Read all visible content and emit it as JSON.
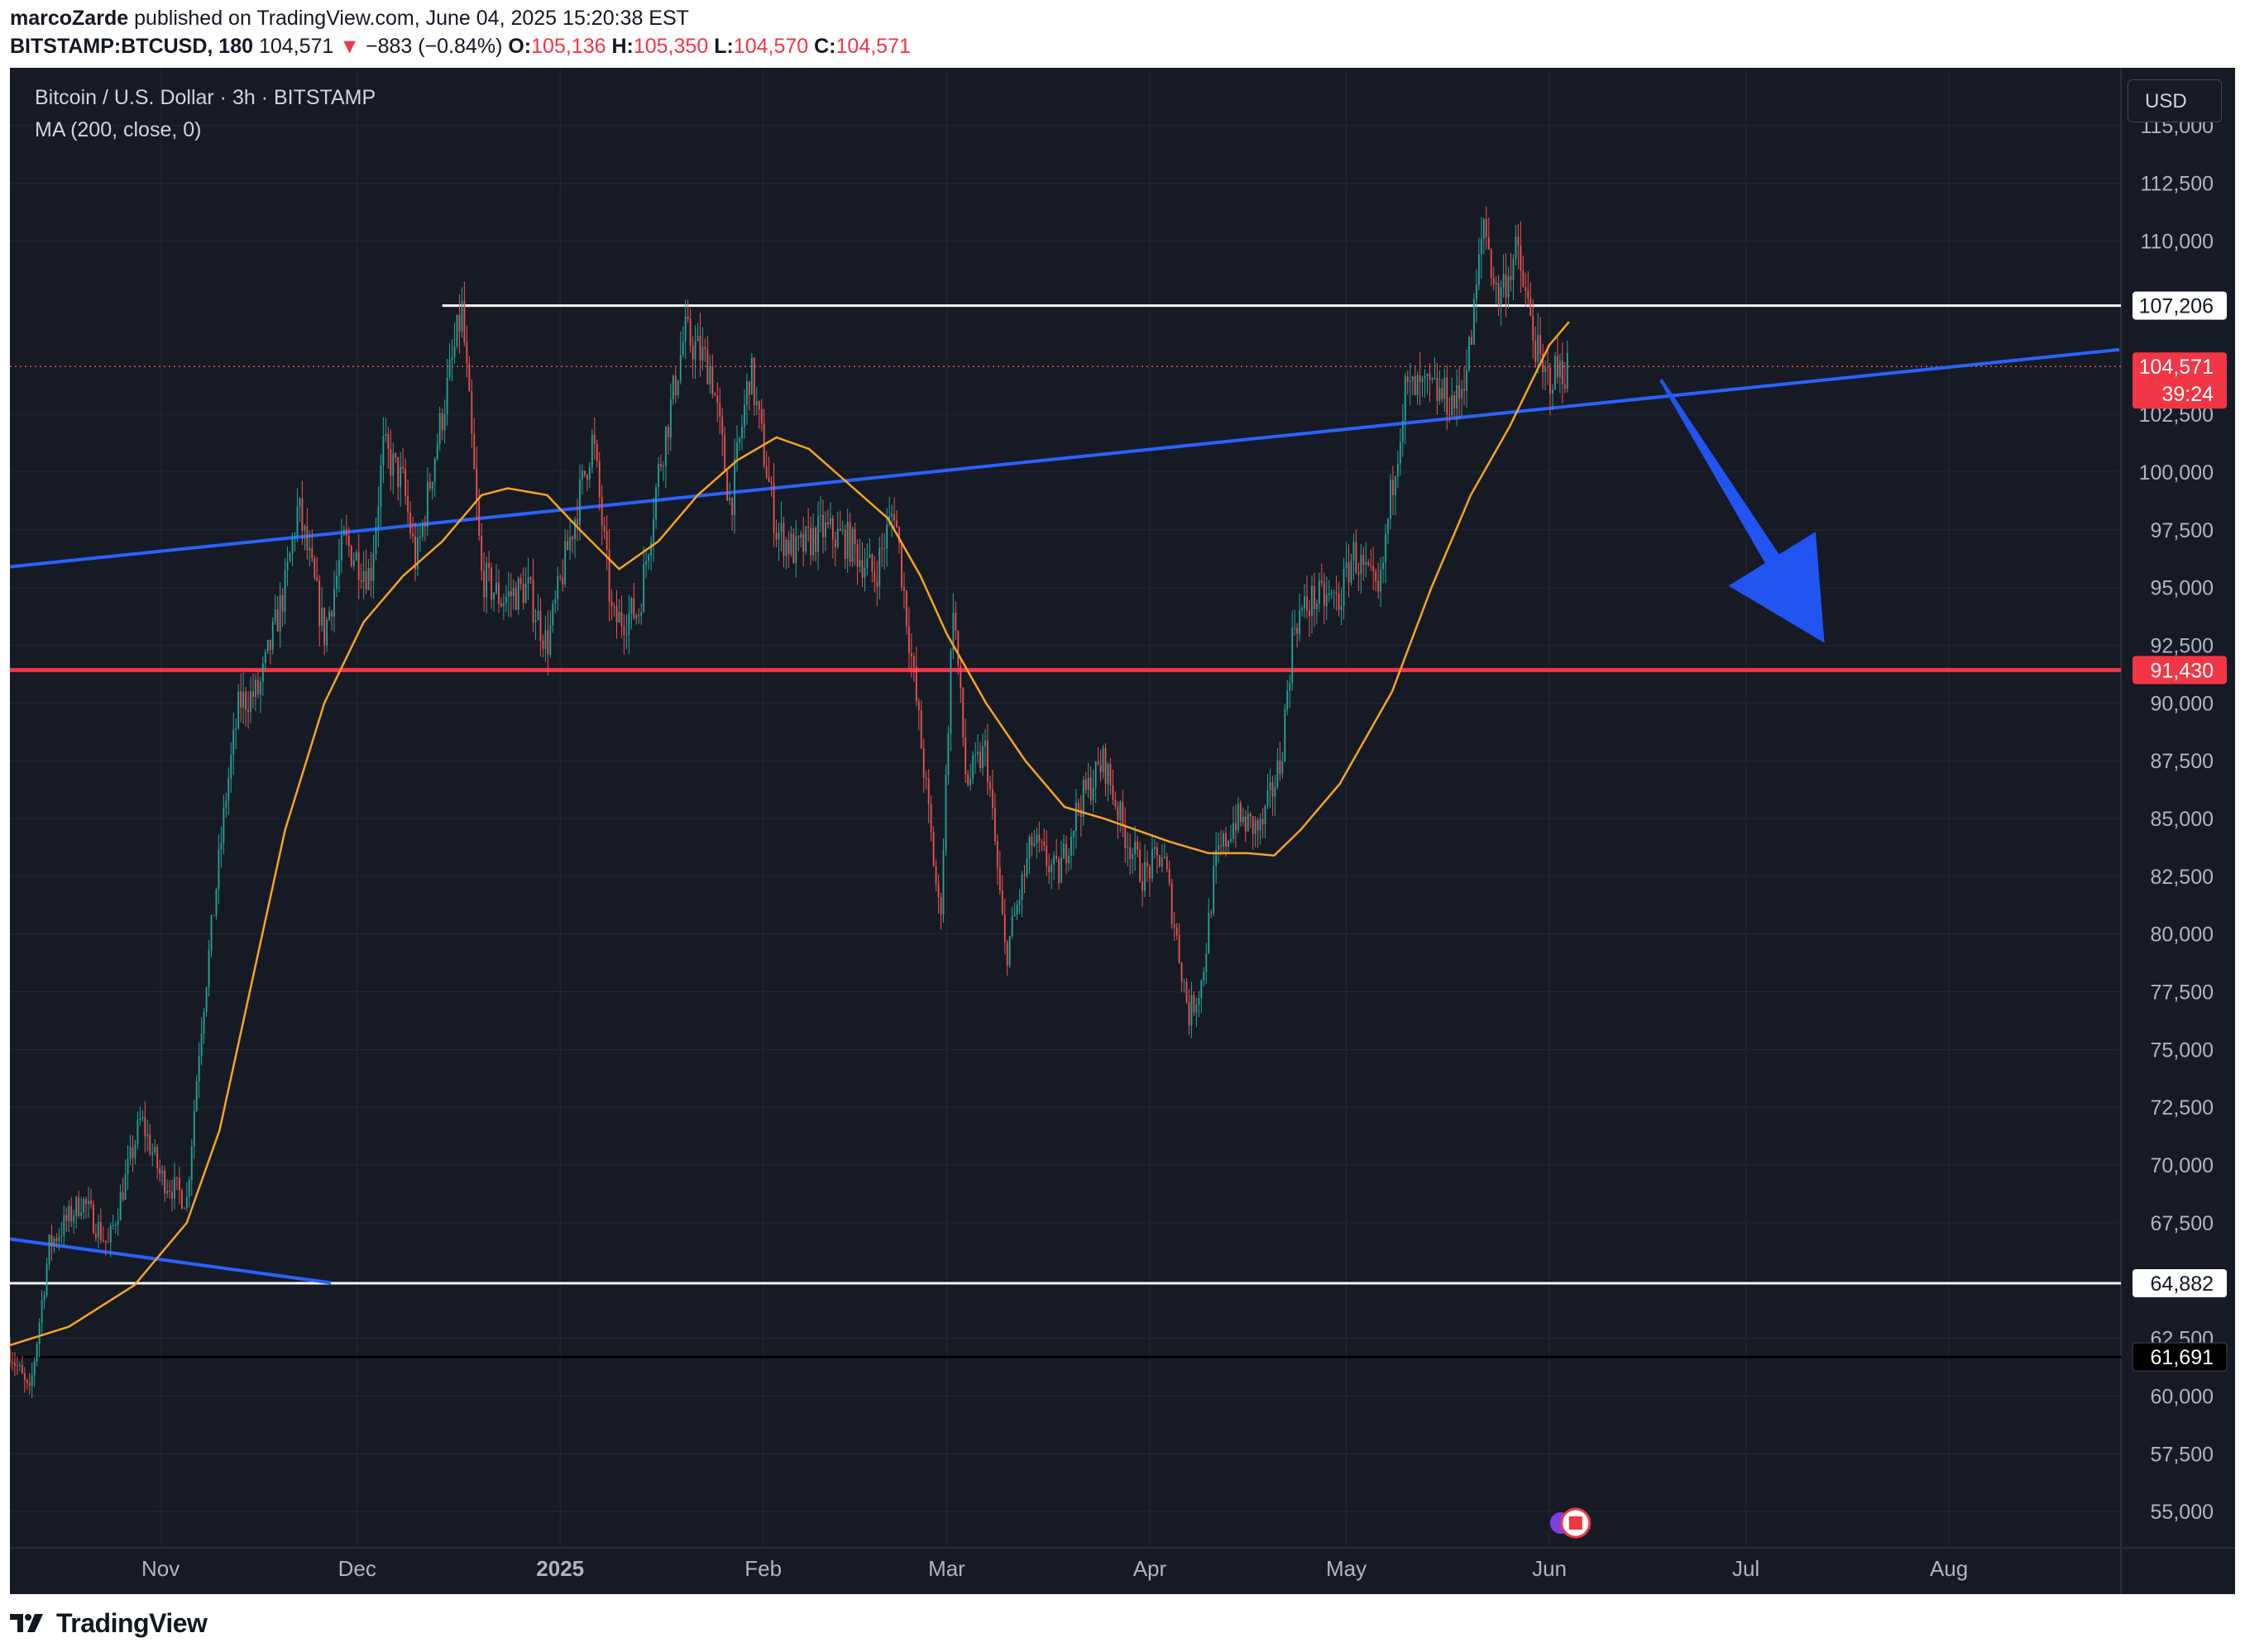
{
  "header": {
    "user": "marcoZarde",
    "published_text": "published on TradingView.com, June 04, 2025 15:20:38 EST",
    "symbol": "BITSTAMP:BTCUSD, 180",
    "last": "104,571",
    "change_arrow": "▼",
    "change": "−883 (−0.84%)",
    "o_label": "O:",
    "o_value": "105,136",
    "h_label": "H:",
    "h_value": "105,350",
    "l_label": "L:",
    "l_value": "104,570",
    "c_label": "C:",
    "c_value": "104,571"
  },
  "legend": {
    "title": "Bitcoin / U.S. Dollar · 3h · BITSTAMP",
    "indicator": "MA (200, close, 0)"
  },
  "currency_button": "USD",
  "footer": {
    "brand": "TradingView"
  },
  "colors": {
    "background": "#161a25",
    "grid": "#232733",
    "candle_up": "#26a69a",
    "candle_down": "#ef5350",
    "ma": "#f7a325",
    "trendline": "#2962ff",
    "support_red": "#f23645",
    "level_white": "#ffffff",
    "arrow": "#2154f0"
  },
  "chart_data": {
    "type": "candlestick",
    "symbol": "BITSTAMP:BTCUSD",
    "timeframe": "3h",
    "ylim": [
      53500,
      117500
    ],
    "y_ticks": [
      55000,
      57500,
      60000,
      62500,
      67500,
      70000,
      72500,
      75000,
      77500,
      80000,
      82500,
      85000,
      87500,
      90000,
      92500,
      95000,
      97500,
      100000,
      102500,
      110000,
      112500,
      115000
    ],
    "y_tick_labels": [
      "55,000",
      "57,500",
      "60,000",
      "62,500",
      "67,500",
      "70,000",
      "72,500",
      "75,000",
      "77,500",
      "80,000",
      "82,500",
      "85,000",
      "87,500",
      "90,000",
      "92,500",
      "95,000",
      "97,500",
      "100,000",
      "102,500",
      "110,000",
      "112,500",
      "115,000"
    ],
    "x_ticks": [
      {
        "label": "Nov",
        "date": "2024-11-01",
        "bold": false
      },
      {
        "label": "Dec",
        "date": "2024-12-01",
        "bold": false
      },
      {
        "label": "2025",
        "date": "2025-01-01",
        "bold": true
      },
      {
        "label": "Feb",
        "date": "2025-02-01",
        "bold": false
      },
      {
        "label": "Mar",
        "date": "2025-03-01",
        "bold": false
      },
      {
        "label": "Apr",
        "date": "2025-04-01",
        "bold": false
      },
      {
        "label": "May",
        "date": "2025-05-01",
        "bold": false
      },
      {
        "label": "Jun",
        "date": "2025-06-01",
        "bold": false
      },
      {
        "label": "Jul",
        "date": "2025-07-01",
        "bold": false
      },
      {
        "label": "Aug",
        "date": "2025-08-01",
        "bold": false
      }
    ],
    "x_range": [
      "2024-10-09",
      "2025-08-27"
    ],
    "price_key_points": [
      [
        "2024-10-09",
        62000
      ],
      [
        "2024-10-12",
        60000
      ],
      [
        "2024-10-15",
        66500
      ],
      [
        "2024-10-20",
        68500
      ],
      [
        "2024-10-24",
        66500
      ],
      [
        "2024-10-29",
        72000
      ],
      [
        "2024-11-01",
        69500
      ],
      [
        "2024-11-05",
        68500
      ],
      [
        "2024-11-07",
        75500
      ],
      [
        "2024-11-11",
        86000
      ],
      [
        "2024-11-13",
        90000
      ],
      [
        "2024-11-16",
        90500
      ],
      [
        "2024-11-20",
        95000
      ],
      [
        "2024-11-22",
        98500
      ],
      [
        "2024-11-26",
        93000
      ],
      [
        "2024-11-29",
        97000
      ],
      [
        "2024-12-03",
        95500
      ],
      [
        "2024-12-05",
        101000
      ],
      [
        "2024-12-08",
        99500
      ],
      [
        "2024-12-10",
        96000
      ],
      [
        "2024-12-13",
        101000
      ],
      [
        "2024-12-17",
        107000
      ],
      [
        "2024-12-20",
        95500
      ],
      [
        "2024-12-23",
        94500
      ],
      [
        "2024-12-27",
        95000
      ],
      [
        "2024-12-30",
        92500
      ],
      [
        "2025-01-02",
        96500
      ],
      [
        "2025-01-06",
        101500
      ],
      [
        "2025-01-09",
        93500
      ],
      [
        "2025-01-13",
        94000
      ],
      [
        "2025-01-16",
        100000
      ],
      [
        "2025-01-20",
        106000
      ],
      [
        "2025-01-24",
        104500
      ],
      [
        "2025-01-27",
        98500
      ],
      [
        "2025-01-30",
        104500
      ],
      [
        "2025-02-03",
        97500
      ],
      [
        "2025-02-06",
        96500
      ],
      [
        "2025-02-10",
        97500
      ],
      [
        "2025-02-14",
        97000
      ],
      [
        "2025-02-18",
        95500
      ],
      [
        "2025-02-21",
        98500
      ],
      [
        "2025-02-25",
        88500
      ],
      [
        "2025-02-28",
        80500
      ],
      [
        "2025-03-02",
        94500
      ],
      [
        "2025-03-04",
        86500
      ],
      [
        "2025-03-07",
        88000
      ],
      [
        "2025-03-10",
        79000
      ],
      [
        "2025-03-14",
        84000
      ],
      [
        "2025-03-18",
        82500
      ],
      [
        "2025-03-21",
        85500
      ],
      [
        "2025-03-25",
        87500
      ],
      [
        "2025-03-28",
        84500
      ],
      [
        "2025-03-31",
        82500
      ],
      [
        "2025-04-03",
        83500
      ],
      [
        "2025-04-07",
        76500
      ],
      [
        "2025-04-09",
        78000
      ],
      [
        "2025-04-11",
        83000
      ],
      [
        "2025-04-14",
        85000
      ],
      [
        "2025-04-18",
        84500
      ],
      [
        "2025-04-21",
        87500
      ],
      [
        "2025-04-23",
        93500
      ],
      [
        "2025-04-26",
        94500
      ],
      [
        "2025-04-30",
        94500
      ],
      [
        "2025-05-02",
        96500
      ],
      [
        "2025-05-06",
        94500
      ],
      [
        "2025-05-08",
        99500
      ],
      [
        "2025-05-10",
        103500
      ],
      [
        "2025-05-14",
        103500
      ],
      [
        "2025-05-18",
        103000
      ],
      [
        "2025-05-20",
        105500
      ],
      [
        "2025-05-22",
        111000
      ],
      [
        "2025-05-24",
        107500
      ],
      [
        "2025-05-27",
        109500
      ],
      [
        "2025-05-31",
        104000
      ],
      [
        "2025-06-04",
        104571
      ]
    ],
    "ma_200_points": [
      [
        "2024-10-09",
        62200
      ],
      [
        "2024-10-18",
        63000
      ],
      [
        "2024-10-28",
        64800
      ],
      [
        "2024-11-05",
        67500
      ],
      [
        "2024-11-10",
        71500
      ],
      [
        "2024-11-15",
        78000
      ],
      [
        "2024-11-20",
        84500
      ],
      [
        "2024-11-26",
        90000
      ],
      [
        "2024-12-02",
        93500
      ],
      [
        "2024-12-08",
        95500
      ],
      [
        "2024-12-14",
        97000
      ],
      [
        "2024-12-20",
        99000
      ],
      [
        "2024-12-24",
        99300
      ],
      [
        "2024-12-30",
        99000
      ],
      [
        "2025-01-04",
        97500
      ],
      [
        "2025-01-10",
        95800
      ],
      [
        "2025-01-16",
        97000
      ],
      [
        "2025-01-22",
        99000
      ],
      [
        "2025-01-28",
        100500
      ],
      [
        "2025-02-03",
        101500
      ],
      [
        "2025-02-08",
        101000
      ],
      [
        "2025-02-14",
        99500
      ],
      [
        "2025-02-20",
        98000
      ],
      [
        "2025-02-25",
        95500
      ],
      [
        "2025-03-01",
        93000
      ],
      [
        "2025-03-07",
        90000
      ],
      [
        "2025-03-13",
        87500
      ],
      [
        "2025-03-19",
        85500
      ],
      [
        "2025-03-25",
        85000
      ],
      [
        "2025-03-30",
        84500
      ],
      [
        "2025-04-04",
        84000
      ],
      [
        "2025-04-10",
        83500
      ],
      [
        "2025-04-16",
        83500
      ],
      [
        "2025-04-20",
        83400
      ],
      [
        "2025-04-24",
        84500
      ],
      [
        "2025-04-30",
        86500
      ],
      [
        "2025-05-04",
        88500
      ],
      [
        "2025-05-08",
        90500
      ],
      [
        "2025-05-14",
        95000
      ],
      [
        "2025-05-20",
        99000
      ],
      [
        "2025-05-26",
        102000
      ],
      [
        "2025-06-01",
        105500
      ],
      [
        "2025-06-04",
        106500
      ]
    ],
    "horizontal_levels": [
      {
        "value": 107206,
        "label": "107,206",
        "color": "#ffffff",
        "start": "2024-12-14",
        "label_bg": "#ffffff",
        "label_color": "#131722"
      },
      {
        "value": 91430,
        "label": "91,430",
        "color": "#f23645",
        "start": "2024-10-09",
        "label_bg": "#f23645",
        "label_color": "#ffffff"
      },
      {
        "value": 64882,
        "label": "64,882",
        "color": "#ffffff",
        "start": "2024-10-09",
        "label_bg": "#ffffff",
        "label_color": "#131722"
      },
      {
        "value": 61691,
        "label": "61,691",
        "color": "#000000",
        "start": "2024-10-09",
        "label_bg": "#000000",
        "label_color": "#ffffff"
      }
    ],
    "last_price_label": {
      "value": 104571,
      "label": "104,571",
      "countdown": "39:24",
      "bg": "#f23645"
    },
    "trendlines": [
      {
        "from": [
          "2024-10-09",
          95900
        ],
        "to": [
          "2025-08-27",
          105300
        ],
        "color": "#2962ff"
      },
      {
        "from": [
          "2024-10-09",
          66800
        ],
        "to": [
          "2024-11-27",
          64900
        ],
        "color": "#2962ff"
      }
    ],
    "arrow": {
      "from": [
        "2025-06-18",
        104000
      ],
      "to": [
        "2025-07-13",
        92600
      ],
      "color": "#2154f0"
    }
  }
}
